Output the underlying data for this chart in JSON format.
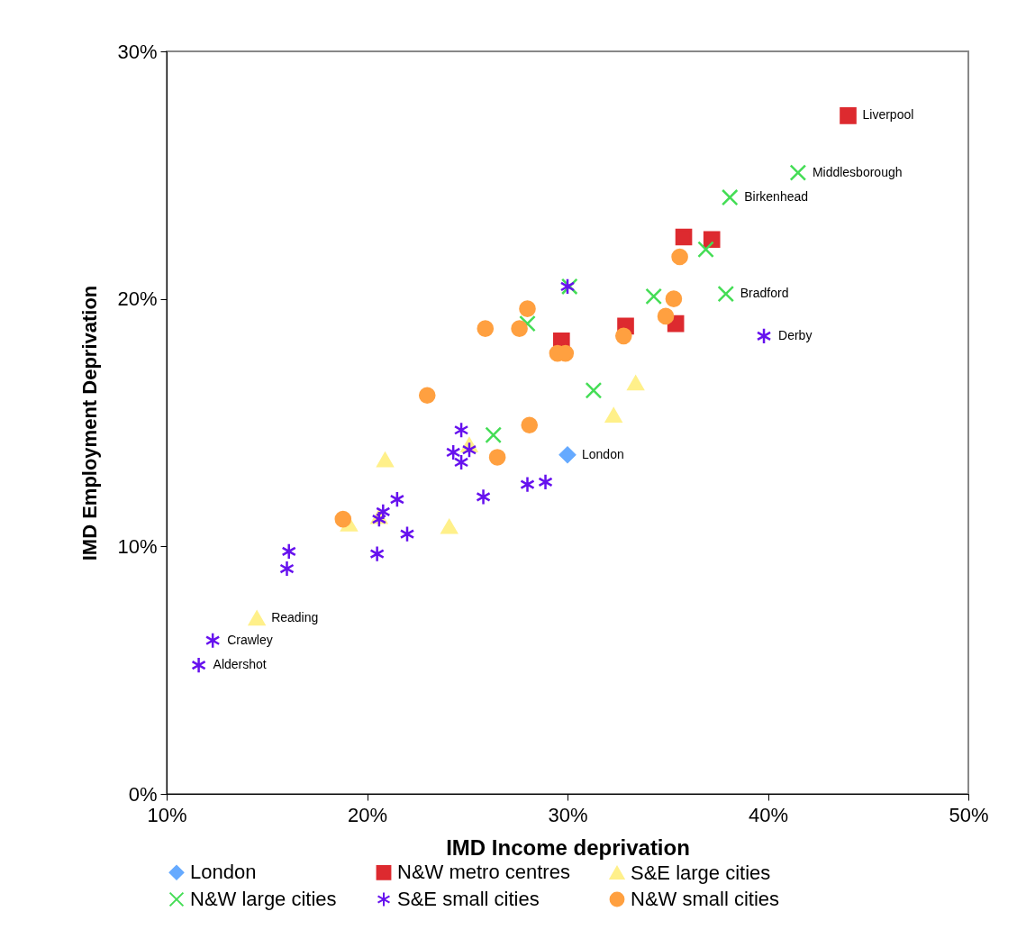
{
  "chart_data": {
    "type": "scatter",
    "xlabel": "IMD Income deprivation",
    "ylabel": "IMD Employment Deprivation",
    "xlim": [
      10,
      50
    ],
    "xticks": [
      {
        "value": 10,
        "label": "10%"
      },
      {
        "value": 20,
        "label": "20%"
      },
      {
        "value": 30,
        "label": "30%"
      },
      {
        "value": 40,
        "label": "40%"
      },
      {
        "value": 50,
        "label": "50%"
      }
    ],
    "ylim": [
      0,
      30
    ],
    "yticks": [
      {
        "value": 0,
        "label": "0%"
      },
      {
        "value": 10,
        "label": "10%"
      },
      {
        "value": 20,
        "label": "20%"
      },
      {
        "value": 30,
        "label": "30%"
      }
    ],
    "grid": false,
    "legend": "bottom",
    "series": [
      {
        "name": "London",
        "color": "#66aaff",
        "marker": "diamond",
        "x": [
          30.0
        ],
        "values": [
          13.7
        ]
      },
      {
        "name": "N&W metro centres",
        "color": "#dd2a2f",
        "marker": "square",
        "x": [
          44.0,
          35.8,
          37.2,
          32.9,
          29.7,
          35.4
        ],
        "values": [
          27.4,
          22.5,
          22.4,
          18.9,
          18.3,
          19.0
        ]
      },
      {
        "name": "S&E large cities",
        "color": "#fff08a",
        "marker": "triangle",
        "x": [
          14.5,
          33.4,
          32.3,
          20.9,
          24.1,
          19.1,
          25.1,
          20.6
        ],
        "values": [
          7.1,
          16.6,
          15.3,
          13.5,
          10.8,
          10.9,
          14.1,
          11.2
        ]
      },
      {
        "name": "N&W large cities",
        "color": "#44dd55",
        "marker": "cross",
        "x": [
          41.5,
          38.1,
          36.9,
          37.9,
          34.3,
          30.1,
          28.0,
          31.3,
          26.3
        ],
        "values": [
          25.1,
          24.1,
          22.0,
          20.2,
          20.1,
          20.5,
          19.0,
          16.3,
          14.5
        ]
      },
      {
        "name": "S&E small cities",
        "color": "#6611ee",
        "x": [
          39.8,
          30.0,
          12.3,
          11.6,
          16.1,
          16.0,
          20.5,
          21.5,
          20.8,
          20.6,
          22.0,
          24.7,
          24.3,
          24.7,
          25.1,
          25.8,
          28.0,
          28.9
        ],
        "values": [
          18.5,
          20.5,
          6.2,
          5.2,
          9.8,
          9.1,
          9.7,
          11.9,
          11.4,
          11.1,
          10.5,
          14.7,
          13.8,
          13.4,
          13.9,
          12.0,
          12.5,
          12.6
        ]
      },
      {
        "name": "N&W small cities",
        "color": "#ffa040",
        "marker": "circle",
        "x": [
          23.0,
          25.9,
          27.6,
          28.0,
          28.1,
          26.5,
          29.5,
          29.9,
          32.8,
          34.9,
          35.3,
          35.6,
          18.8
        ],
        "values": [
          16.1,
          18.8,
          18.8,
          19.6,
          14.9,
          13.6,
          17.8,
          17.8,
          18.5,
          19.3,
          20.0,
          21.7,
          11.1
        ]
      }
    ],
    "annotations": [
      {
        "text": "Liverpool",
        "x": 44.0,
        "y": 27.4
      },
      {
        "text": "Middlesborough",
        "x": 41.5,
        "y": 25.1
      },
      {
        "text": "Birkenhead",
        "x": 38.1,
        "y": 24.1
      },
      {
        "text": "Bradford",
        "x": 37.9,
        "y": 20.2
      },
      {
        "text": "Derby",
        "x": 39.8,
        "y": 18.5
      },
      {
        "text": "London",
        "x": 30.0,
        "y": 13.7
      },
      {
        "text": "Reading",
        "x": 14.5,
        "y": 7.1
      },
      {
        "text": "Crawley",
        "x": 12.3,
        "y": 6.2
      },
      {
        "text": "Aldershot",
        "x": 11.6,
        "y": 5.2
      }
    ]
  }
}
